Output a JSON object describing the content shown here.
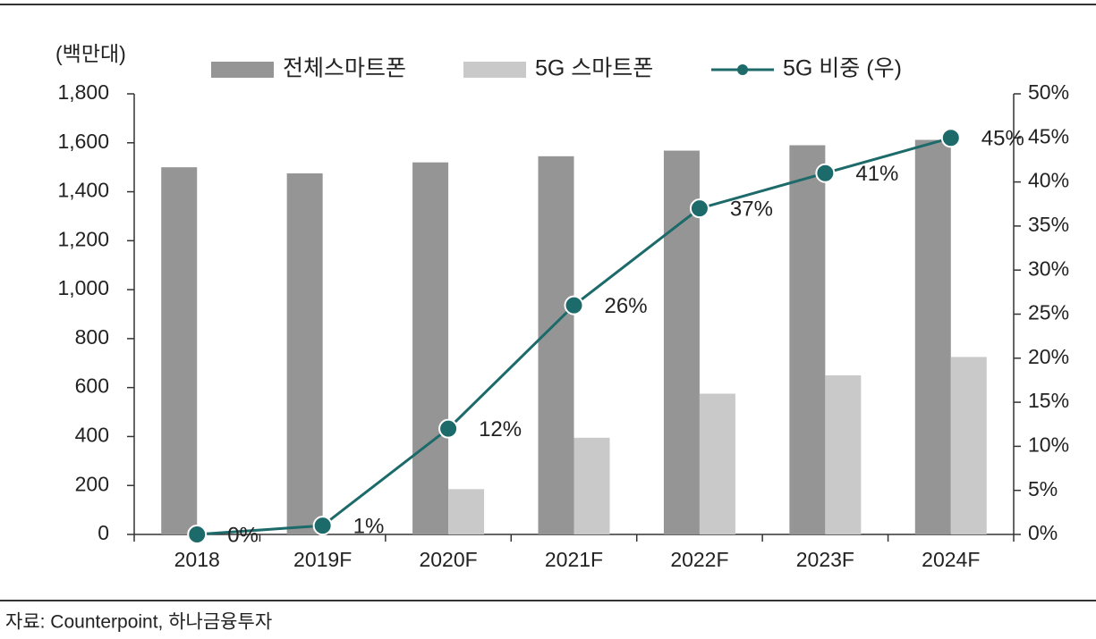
{
  "chart_data": {
    "type": "bar",
    "y_label": "(백만대)",
    "source": "자료: Counterpoint, 하나금융투자",
    "categories": [
      "2018",
      "2019F",
      "2020F",
      "2021F",
      "2022F",
      "2023F",
      "2024F"
    ],
    "series": [
      {
        "name": "전체스마트폰",
        "color": "#959595",
        "values": [
          1500,
          1475,
          1520,
          1545,
          1568,
          1590,
          1612
        ]
      },
      {
        "name": "5G 스마트폰",
        "color": "#c9c9c9",
        "values": [
          0,
          0,
          185,
          395,
          575,
          650,
          725
        ]
      },
      {
        "name": "5G 비중 (우)",
        "type": "line",
        "axis": "y2",
        "color": "#1d6a6a",
        "values": [
          0,
          1,
          12,
          26,
          37,
          41,
          45
        ],
        "value_labels": [
          "0%",
          "1%",
          "12%",
          "26%",
          "37%",
          "41%",
          "45%"
        ]
      }
    ],
    "ylim": [
      0,
      1800
    ],
    "yticks": [
      0,
      200,
      400,
      600,
      800,
      {
        "value": 1000,
        "label": "1,000"
      },
      {
        "value": 1200,
        "label": "1,200"
      },
      {
        "value": 1400,
        "label": "1,400"
      },
      {
        "value": 1600,
        "label": "1,600"
      },
      {
        "value": 1800,
        "label": "1,800"
      }
    ],
    "y2lim": [
      0,
      50
    ],
    "y2ticks": [
      {
        "value": 0,
        "label": "0%"
      },
      {
        "value": 5,
        "label": "5%"
      },
      {
        "value": 10,
        "label": "10%"
      },
      {
        "value": 15,
        "label": "15%"
      },
      {
        "value": 20,
        "label": "20%"
      },
      {
        "value": 25,
        "label": "25%"
      },
      {
        "value": 30,
        "label": "30%"
      },
      {
        "value": 35,
        "label": "35%"
      },
      {
        "value": 40,
        "label": "40%"
      },
      {
        "value": 45,
        "label": "45%"
      },
      {
        "value": 50,
        "label": "50%"
      }
    ]
  }
}
